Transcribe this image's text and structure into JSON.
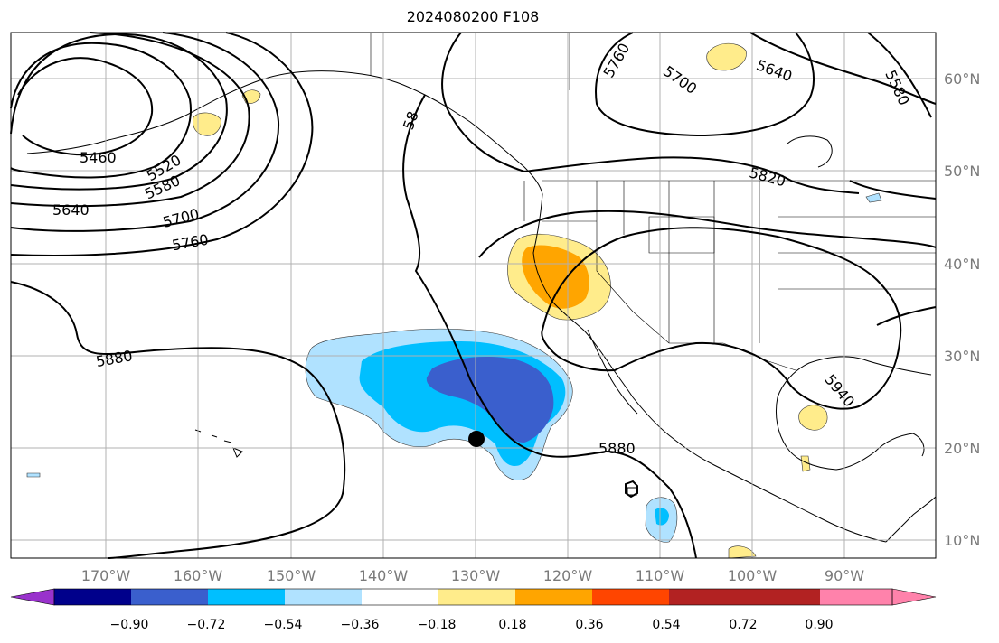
{
  "title": "2024080200 F108",
  "lon_labels": [
    "170°W",
    "160°W",
    "150°W",
    "140°W",
    "130°W",
    "120°W",
    "110°W",
    "100°W",
    "90°W"
  ],
  "lat_labels": [
    "60°N",
    "50°N",
    "40°N",
    "30°N",
    "20°N",
    "10°N"
  ],
  "contour_labels": {
    "c5460": "5460",
    "c5520": "5520",
    "c5580": "5580",
    "c5640": "5640",
    "c5700": "5700",
    "c5760": "5760",
    "c5880_w": "5880",
    "c58_partial": "58",
    "c5760_n": "5760",
    "c5700_n": "5700",
    "c5640_ne": "5640",
    "c5580_ne": "5580",
    "c5820": "5820",
    "c5880_s": "5880",
    "c5940": "5940"
  },
  "colorbar": {
    "ticks": [
      "−0.90",
      "−0.72",
      "−0.54",
      "−0.36",
      "−0.18",
      "0.18",
      "0.36",
      "0.54",
      "0.72",
      "0.90"
    ],
    "colors": [
      "#9932cc",
      "#00008b",
      "#3a5fcd",
      "#00bfff",
      "#b0e2ff",
      "#ffffff",
      "#ffec8b",
      "#ffa500",
      "#ff4500",
      "#b22222",
      "#ff82ab"
    ]
  }
}
